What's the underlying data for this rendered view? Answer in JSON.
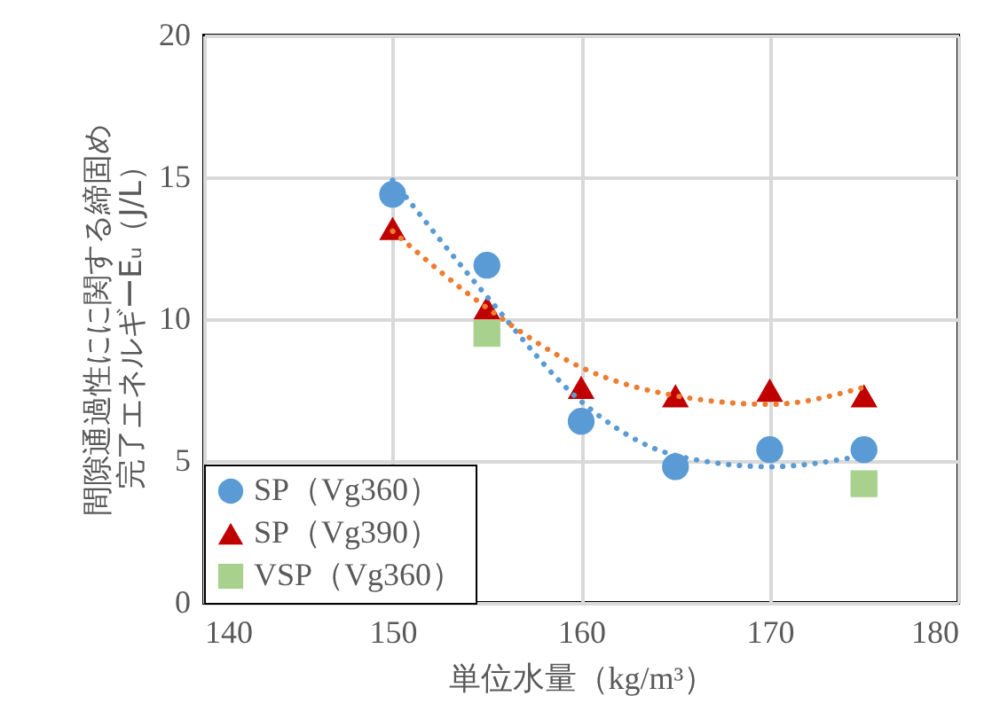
{
  "chart_data": {
    "type": "scatter",
    "xlabel": "単位水量（kg/m³）",
    "ylabel": "間隙通過性にに関する締固め完了エネルギーEᵤ（J/L）",
    "xlim": [
      140,
      180
    ],
    "xticks": [
      140,
      150,
      160,
      170,
      180
    ],
    "ylim": [
      0,
      20
    ],
    "yticks": [
      0,
      5,
      10,
      15,
      20
    ],
    "grid": true,
    "legend": "bottom left",
    "series": [
      {
        "name": "SP（Vg360）",
        "color": "#5b9bd5",
        "marker": "circle",
        "x": [
          150,
          155,
          160,
          165,
          170,
          175
        ],
        "values": [
          14.4,
          11.9,
          6.4,
          4.8,
          5.4,
          5.4
        ]
      },
      {
        "name": "SP（Vg390）",
        "color": "#c00000",
        "marker": "triangle",
        "x": [
          150,
          155,
          160,
          165,
          170,
          175
        ],
        "values": [
          13.2,
          10.4,
          7.6,
          7.3,
          7.5,
          7.3
        ]
      },
      {
        "name": "VSP（Vg360）",
        "color": "#a9d18e",
        "marker": "square",
        "x": [
          155,
          175
        ],
        "values": [
          9.5,
          4.2
        ]
      },
      {
        "type": "line",
        "color": "#5b9bd5",
        "line_style": "dotted",
        "x": [
          150,
          155,
          160,
          165,
          170,
          175
        ],
        "values": [
          14.9,
          10.8,
          7.1,
          5.2,
          4.8,
          5.2
        ]
      },
      {
        "type": "line",
        "color": "#ed7d31",
        "line_style": "dotted",
        "x": [
          150,
          155,
          160,
          165,
          170,
          175
        ],
        "values": [
          13.1,
          10.4,
          8.3,
          7.3,
          7.0,
          7.6
        ]
      }
    ]
  }
}
